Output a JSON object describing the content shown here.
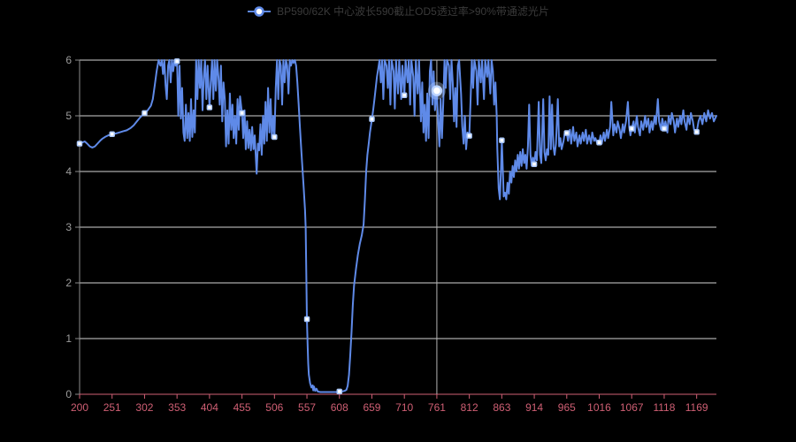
{
  "legend": {
    "label": "BP590/62K 中心波长590截止OD5透过率>90%带通滤光片"
  },
  "colors": {
    "background": "#000000",
    "series_line": "#5f8ae8",
    "symbol_fill": "#ffffff",
    "symbol_border": "#a9c6f7",
    "highlight_ring": "#bcd4ff",
    "grid_line": "#d4d4d4",
    "y_axis_line": "#8c8c8c",
    "y_label": "#9c9c9c",
    "x_axis_line": "#cf5f74",
    "x_label": "#cf5f74",
    "crosshair": "#b4b4b4",
    "legend_text": "#3a3a3a"
  },
  "chart_data": {
    "type": "line",
    "title": "",
    "xlabel": "",
    "ylabel": "",
    "series_name": "BP590/62K 中心波长590截止OD5透过率>90%带通滤光片",
    "legend_position": "top-center",
    "grid": true,
    "xlim": [
      200,
      1200
    ],
    "ylim": [
      0,
      6
    ],
    "x_ticks": [
      200,
      251,
      302,
      353,
      404,
      455,
      506,
      557,
      608,
      659,
      710,
      761,
      812,
      863,
      914,
      965,
      1016,
      1067,
      1118,
      1169
    ],
    "y_ticks": [
      0,
      1,
      2,
      3,
      4,
      5,
      6
    ],
    "crosshair_x": 761,
    "highlighted_point": {
      "x": 761,
      "y": 5.45
    },
    "symbol_points": [
      [
        200,
        4.5
      ],
      [
        251,
        4.67
      ],
      [
        302,
        5.05
      ],
      [
        353,
        5.98
      ],
      [
        404,
        5.15
      ],
      [
        455,
        5.05
      ],
      [
        506,
        4.62
      ],
      [
        557,
        1.35
      ],
      [
        608,
        0.05
      ],
      [
        659,
        4.94
      ],
      [
        710,
        5.37
      ],
      [
        812,
        4.64
      ],
      [
        863,
        4.56
      ],
      [
        914,
        4.13
      ],
      [
        965,
        4.69
      ],
      [
        1016,
        4.52
      ],
      [
        1067,
        4.77
      ],
      [
        1118,
        4.77
      ],
      [
        1169,
        4.71
      ]
    ],
    "points": [
      [
        200,
        4.5
      ],
      [
        204,
        4.52
      ],
      [
        208,
        4.54
      ],
      [
        212,
        4.5
      ],
      [
        216,
        4.45
      ],
      [
        220,
        4.43
      ],
      [
        224,
        4.45
      ],
      [
        228,
        4.5
      ],
      [
        232,
        4.55
      ],
      [
        236,
        4.59
      ],
      [
        240,
        4.62
      ],
      [
        245,
        4.65
      ],
      [
        251,
        4.67
      ],
      [
        256,
        4.68
      ],
      [
        262,
        4.7
      ],
      [
        268,
        4.72
      ],
      [
        274,
        4.74
      ],
      [
        280,
        4.78
      ],
      [
        285,
        4.83
      ],
      [
        290,
        4.9
      ],
      [
        295,
        4.97
      ],
      [
        302,
        5.05
      ],
      [
        307,
        5.1
      ],
      [
        312,
        5.18
      ],
      [
        315,
        5.3
      ],
      [
        318,
        5.55
      ],
      [
        321,
        5.8
      ],
      [
        324,
        6
      ],
      [
        327,
        5.9
      ],
      [
        329,
        6
      ],
      [
        331,
        5.75
      ],
      [
        333,
        6
      ],
      [
        335,
        5.55
      ],
      [
        337,
        5.3
      ],
      [
        339,
        5.9
      ],
      [
        341,
        6
      ],
      [
        343,
        5.6
      ],
      [
        345,
        6
      ],
      [
        347,
        5.8
      ],
      [
        349,
        6
      ],
      [
        351,
        5.9
      ],
      [
        353,
        5.98
      ],
      [
        355,
        5.0
      ],
      [
        357,
        5.9
      ],
      [
        359,
        4.95
      ],
      [
        361,
        5.5
      ],
      [
        363,
        4.7
      ],
      [
        365,
        4.55
      ],
      [
        367,
        5.2
      ],
      [
        369,
        4.6
      ],
      [
        371,
        5.05
      ],
      [
        373,
        4.55
      ],
      [
        375,
        5.3
      ],
      [
        377,
        4.62
      ],
      [
        379,
        5.1
      ],
      [
        381,
        4.7
      ],
      [
        383,
        6
      ],
      [
        385,
        5.3
      ],
      [
        387,
        6
      ],
      [
        389,
        5.5
      ],
      [
        391,
        6
      ],
      [
        393,
        5.1
      ],
      [
        395,
        5.7
      ],
      [
        397,
        6
      ],
      [
        399,
        5.3
      ],
      [
        401,
        5.9
      ],
      [
        404,
        5.15
      ],
      [
        406,
        5.6
      ],
      [
        408,
        6
      ],
      [
        410,
        5.3
      ],
      [
        412,
        6
      ],
      [
        414,
        5.45
      ],
      [
        416,
        6
      ],
      [
        418,
        5.7
      ],
      [
        420,
        5.2
      ],
      [
        422,
        5.9
      ],
      [
        424,
        4.9
      ],
      [
        426,
        5.6
      ],
      [
        428,
        5.3
      ],
      [
        430,
        4.45
      ],
      [
        432,
        5.1
      ],
      [
        434,
        4.5
      ],
      [
        436,
        5.4
      ],
      [
        438,
        4.75
      ],
      [
        440,
        5.2
      ],
      [
        442,
        4.6
      ],
      [
        444,
        5.0
      ],
      [
        446,
        4.5
      ],
      [
        448,
        5.3
      ],
      [
        450,
        4.75
      ],
      [
        452,
        5.35
      ],
      [
        455,
        5.05
      ],
      [
        457,
        4.6
      ],
      [
        459,
        5.1
      ],
      [
        461,
        4.4
      ],
      [
        463,
        4.9
      ],
      [
        465,
        4.42
      ],
      [
        467,
        4.75
      ],
      [
        469,
        4.38
      ],
      [
        471,
        4.8
      ],
      [
        473,
        4.4
      ],
      [
        475,
        4.65
      ],
      [
        478,
        3.96
      ],
      [
        480,
        4.5
      ],
      [
        482,
        4.38
      ],
      [
        484,
        4.85
      ],
      [
        486,
        4.3
      ],
      [
        488,
        5.0
      ],
      [
        490,
        4.5
      ],
      [
        492,
        5.25
      ],
      [
        494,
        4.55
      ],
      [
        496,
        5.5
      ],
      [
        498,
        4.7
      ],
      [
        500,
        5.3
      ],
      [
        502,
        4.6
      ],
      [
        504,
        5.0
      ],
      [
        506,
        4.62
      ],
      [
        508,
        5.5
      ],
      [
        510,
        6
      ],
      [
        512,
        5.3
      ],
      [
        514,
        6
      ],
      [
        516,
        5.9
      ],
      [
        518,
        5.2
      ],
      [
        520,
        6
      ],
      [
        522,
        5.6
      ],
      [
        524,
        6
      ],
      [
        526,
        5.9
      ],
      [
        528,
        5.4
      ],
      [
        530,
        6
      ],
      [
        532,
        5.9
      ],
      [
        534,
        6
      ],
      [
        536,
        5.95
      ],
      [
        538,
        6
      ],
      [
        540,
        5.9
      ],
      [
        542,
        5.6
      ],
      [
        544,
        5.2
      ],
      [
        546,
        4.8
      ],
      [
        548,
        4.4
      ],
      [
        550,
        4.05
      ],
      [
        552,
        3.7
      ],
      [
        554,
        3.3
      ],
      [
        555,
        3.0
      ],
      [
        556,
        2.2
      ],
      [
        557,
        1.35
      ],
      [
        558,
        0.9
      ],
      [
        559,
        0.55
      ],
      [
        560,
        0.35
      ],
      [
        562,
        0.2
      ],
      [
        564,
        0.12
      ],
      [
        566,
        0.16
      ],
      [
        567,
        0.07
      ],
      [
        568,
        0.14
      ],
      [
        570,
        0.06
      ],
      [
        572,
        0.1
      ],
      [
        574,
        0.05
      ],
      [
        578,
        0.04
      ],
      [
        582,
        0.04
      ],
      [
        586,
        0.04
      ],
      [
        590,
        0.04
      ],
      [
        594,
        0.04
      ],
      [
        598,
        0.04
      ],
      [
        602,
        0.04
      ],
      [
        605,
        0.04
      ],
      [
        608,
        0.05
      ],
      [
        612,
        0.05
      ],
      [
        616,
        0.06
      ],
      [
        619,
        0.08
      ],
      [
        621,
        0.15
      ],
      [
        623,
        0.35
      ],
      [
        625,
        0.7
      ],
      [
        627,
        1.1
      ],
      [
        629,
        1.6
      ],
      [
        631,
        1.95
      ],
      [
        634,
        2.25
      ],
      [
        637,
        2.5
      ],
      [
        640,
        2.7
      ],
      [
        643,
        2.85
      ],
      [
        646,
        3.05
      ],
      [
        648,
        3.5
      ],
      [
        650,
        4.0
      ],
      [
        652,
        4.3
      ],
      [
        654,
        4.5
      ],
      [
        656,
        4.7
      ],
      [
        659,
        4.94
      ],
      [
        661,
        5.1
      ],
      [
        663,
        5.3
      ],
      [
        665,
        5.5
      ],
      [
        667,
        5.7
      ],
      [
        669,
        5.85
      ],
      [
        671,
        6
      ],
      [
        673,
        5.6
      ],
      [
        675,
        6
      ],
      [
        677,
        5.3
      ],
      [
        679,
        6
      ],
      [
        682,
        5.9
      ],
      [
        684,
        5.5
      ],
      [
        686,
        6
      ],
      [
        688,
        5.2
      ],
      [
        690,
        6
      ],
      [
        693,
        5.8
      ],
      [
        695,
        5.13
      ],
      [
        697,
        6
      ],
      [
        700,
        5.4
      ],
      [
        702,
        6
      ],
      [
        705,
        5.3
      ],
      [
        707,
        5.9
      ],
      [
        710,
        5.37
      ],
      [
        712,
        6
      ],
      [
        715,
        5.6
      ],
      [
        717,
        6
      ],
      [
        719,
        5.2
      ],
      [
        721,
        6
      ],
      [
        724,
        5.7
      ],
      [
        726,
        5.0
      ],
      [
        728,
        6
      ],
      [
        731,
        5.4
      ],
      [
        733,
        6
      ],
      [
        736,
        4.9
      ],
      [
        738,
        5.6
      ],
      [
        740,
        4.7
      ],
      [
        742,
        5.2
      ],
      [
        744,
        4.55
      ],
      [
        746,
        5.4
      ],
      [
        748,
        4.6
      ],
      [
        750,
        5.8
      ],
      [
        752,
        6
      ],
      [
        754,
        5.2
      ],
      [
        756,
        5.8
      ],
      [
        758,
        5.1
      ],
      [
        761,
        5.45
      ],
      [
        763,
        4.9
      ],
      [
        765,
        4.45
      ],
      [
        767,
        5.3
      ],
      [
        769,
        4.6
      ],
      [
        771,
        5.2
      ],
      [
        773,
        6
      ],
      [
        775,
        5.5
      ],
      [
        777,
        6
      ],
      [
        780,
        5.9
      ],
      [
        782,
        5.3
      ],
      [
        784,
        6
      ],
      [
        786,
        5.6
      ],
      [
        788,
        4.9
      ],
      [
        790,
        5.5
      ],
      [
        792,
        4.8
      ],
      [
        794,
        5.9
      ],
      [
        796,
        6
      ],
      [
        799,
        5.4
      ],
      [
        801,
        4.8
      ],
      [
        803,
        4.5
      ],
      [
        805,
        5.0
      ],
      [
        807,
        4.4
      ],
      [
        809,
        4.7
      ],
      [
        812,
        4.64
      ],
      [
        814,
        5.3
      ],
      [
        816,
        6
      ],
      [
        818,
        5.5
      ],
      [
        820,
        6
      ],
      [
        823,
        5.8
      ],
      [
        825,
        5.2
      ],
      [
        827,
        6
      ],
      [
        830,
        5.6
      ],
      [
        832,
        6
      ],
      [
        835,
        5.3
      ],
      [
        837,
        6
      ],
      [
        840,
        5.7
      ],
      [
        842,
        6
      ],
      [
        845,
        5.4
      ],
      [
        847,
        6
      ],
      [
        849,
        5.8
      ],
      [
        851,
        5.2
      ],
      [
        853,
        5.6
      ],
      [
        855,
        5.0
      ],
      [
        856,
        4.4
      ],
      [
        858,
        3.7
      ],
      [
        860,
        3.5
      ],
      [
        862,
        4.1
      ],
      [
        863,
        4.56
      ],
      [
        865,
        3.9
      ],
      [
        866,
        3.55
      ],
      [
        868,
        3.62
      ],
      [
        870,
        3.5
      ],
      [
        872,
        3.8
      ],
      [
        874,
        3.6
      ],
      [
        876,
        4.0
      ],
      [
        878,
        3.8
      ],
      [
        880,
        4.1
      ],
      [
        882,
        3.9
      ],
      [
        884,
        4.2
      ],
      [
        886,
        4.0
      ],
      [
        888,
        4.3
      ],
      [
        890,
        4.05
      ],
      [
        892,
        4.35
      ],
      [
        894,
        4.1
      ],
      [
        896,
        4.4
      ],
      [
        898,
        4.15
      ],
      [
        900,
        4.3
      ],
      [
        902,
        4.05
      ],
      [
        904,
        4.45
      ],
      [
        906,
        5.2
      ],
      [
        908,
        4.3
      ],
      [
        910,
        4.1
      ],
      [
        912,
        4.25
      ],
      [
        914,
        4.13
      ],
      [
        916,
        4.35
      ],
      [
        918,
        4.2
      ],
      [
        921,
        5.25
      ],
      [
        923,
        4.3
      ],
      [
        925,
        4.15
      ],
      [
        928,
        5.3
      ],
      [
        930,
        4.35
      ],
      [
        932,
        4.2
      ],
      [
        934,
        4.4
      ],
      [
        936,
        4.3
      ],
      [
        938,
        5.35
      ],
      [
        940,
        4.4
      ],
      [
        942,
        5.2
      ],
      [
        944,
        4.45
      ],
      [
        946,
        4.3
      ],
      [
        948,
        4.5
      ],
      [
        951,
        5.3
      ],
      [
        953,
        4.45
      ],
      [
        955,
        4.6
      ],
      [
        957,
        4.4
      ],
      [
        960,
        4.55
      ],
      [
        962,
        4.7
      ],
      [
        965,
        4.69
      ],
      [
        967,
        4.55
      ],
      [
        970,
        4.75
      ],
      [
        972,
        4.5
      ],
      [
        975,
        4.8
      ],
      [
        977,
        4.55
      ],
      [
        980,
        4.7
      ],
      [
        982,
        4.45
      ],
      [
        985,
        4.65
      ],
      [
        987,
        4.5
      ],
      [
        990,
        4.7
      ],
      [
        992,
        4.55
      ],
      [
        995,
        4.75
      ],
      [
        997,
        4.5
      ],
      [
        1000,
        4.65
      ],
      [
        1003,
        4.5
      ],
      [
        1005,
        4.7
      ],
      [
        1008,
        4.55
      ],
      [
        1010,
        4.6
      ],
      [
        1013,
        4.5
      ],
      [
        1016,
        4.52
      ],
      [
        1018,
        4.65
      ],
      [
        1020,
        4.5
      ],
      [
        1023,
        4.7
      ],
      [
        1025,
        4.55
      ],
      [
        1028,
        4.75
      ],
      [
        1030,
        4.6
      ],
      [
        1033,
        4.8
      ],
      [
        1035,
        5.25
      ],
      [
        1038,
        4.65
      ],
      [
        1040,
        4.85
      ],
      [
        1043,
        4.7
      ],
      [
        1045,
        4.9
      ],
      [
        1048,
        4.75
      ],
      [
        1050,
        4.6
      ],
      [
        1053,
        4.85
      ],
      [
        1055,
        4.7
      ],
      [
        1058,
        4.9
      ],
      [
        1061,
        5.25
      ],
      [
        1063,
        4.8
      ],
      [
        1065,
        4.65
      ],
      [
        1067,
        4.77
      ],
      [
        1070,
        4.9
      ],
      [
        1072,
        4.7
      ],
      [
        1075,
        5.0
      ],
      [
        1077,
        4.8
      ],
      [
        1080,
        4.65
      ],
      [
        1082,
        4.9
      ],
      [
        1085,
        4.75
      ],
      [
        1088,
        5.0
      ],
      [
        1090,
        4.8
      ],
      [
        1093,
        4.95
      ],
      [
        1095,
        4.7
      ],
      [
        1098,
        4.9
      ],
      [
        1100,
        4.75
      ],
      [
        1103,
        5.0
      ],
      [
        1105,
        4.85
      ],
      [
        1108,
        5.3
      ],
      [
        1110,
        4.9
      ],
      [
        1113,
        4.75
      ],
      [
        1115,
        4.95
      ],
      [
        1118,
        4.77
      ],
      [
        1120,
        4.9
      ],
      [
        1123,
        4.7
      ],
      [
        1125,
        5.0
      ],
      [
        1128,
        4.85
      ],
      [
        1130,
        5.05
      ],
      [
        1133,
        4.9
      ],
      [
        1135,
        4.7
      ],
      [
        1138,
        4.95
      ],
      [
        1140,
        4.8
      ],
      [
        1143,
        5.0
      ],
      [
        1145,
        4.85
      ],
      [
        1148,
        5.1
      ],
      [
        1150,
        4.9
      ],
      [
        1153,
        4.75
      ],
      [
        1155,
        5.0
      ],
      [
        1158,
        4.85
      ],
      [
        1160,
        5.05
      ],
      [
        1163,
        4.9
      ],
      [
        1165,
        4.75
      ],
      [
        1169,
        4.71
      ],
      [
        1172,
        4.9
      ],
      [
        1175,
        5.0
      ],
      [
        1178,
        4.85
      ],
      [
        1181,
        5.05
      ],
      [
        1184,
        4.9
      ],
      [
        1187,
        5.1
      ],
      [
        1190,
        4.95
      ],
      [
        1193,
        5.05
      ],
      [
        1196,
        4.9
      ],
      [
        1200,
        5.0
      ]
    ]
  }
}
